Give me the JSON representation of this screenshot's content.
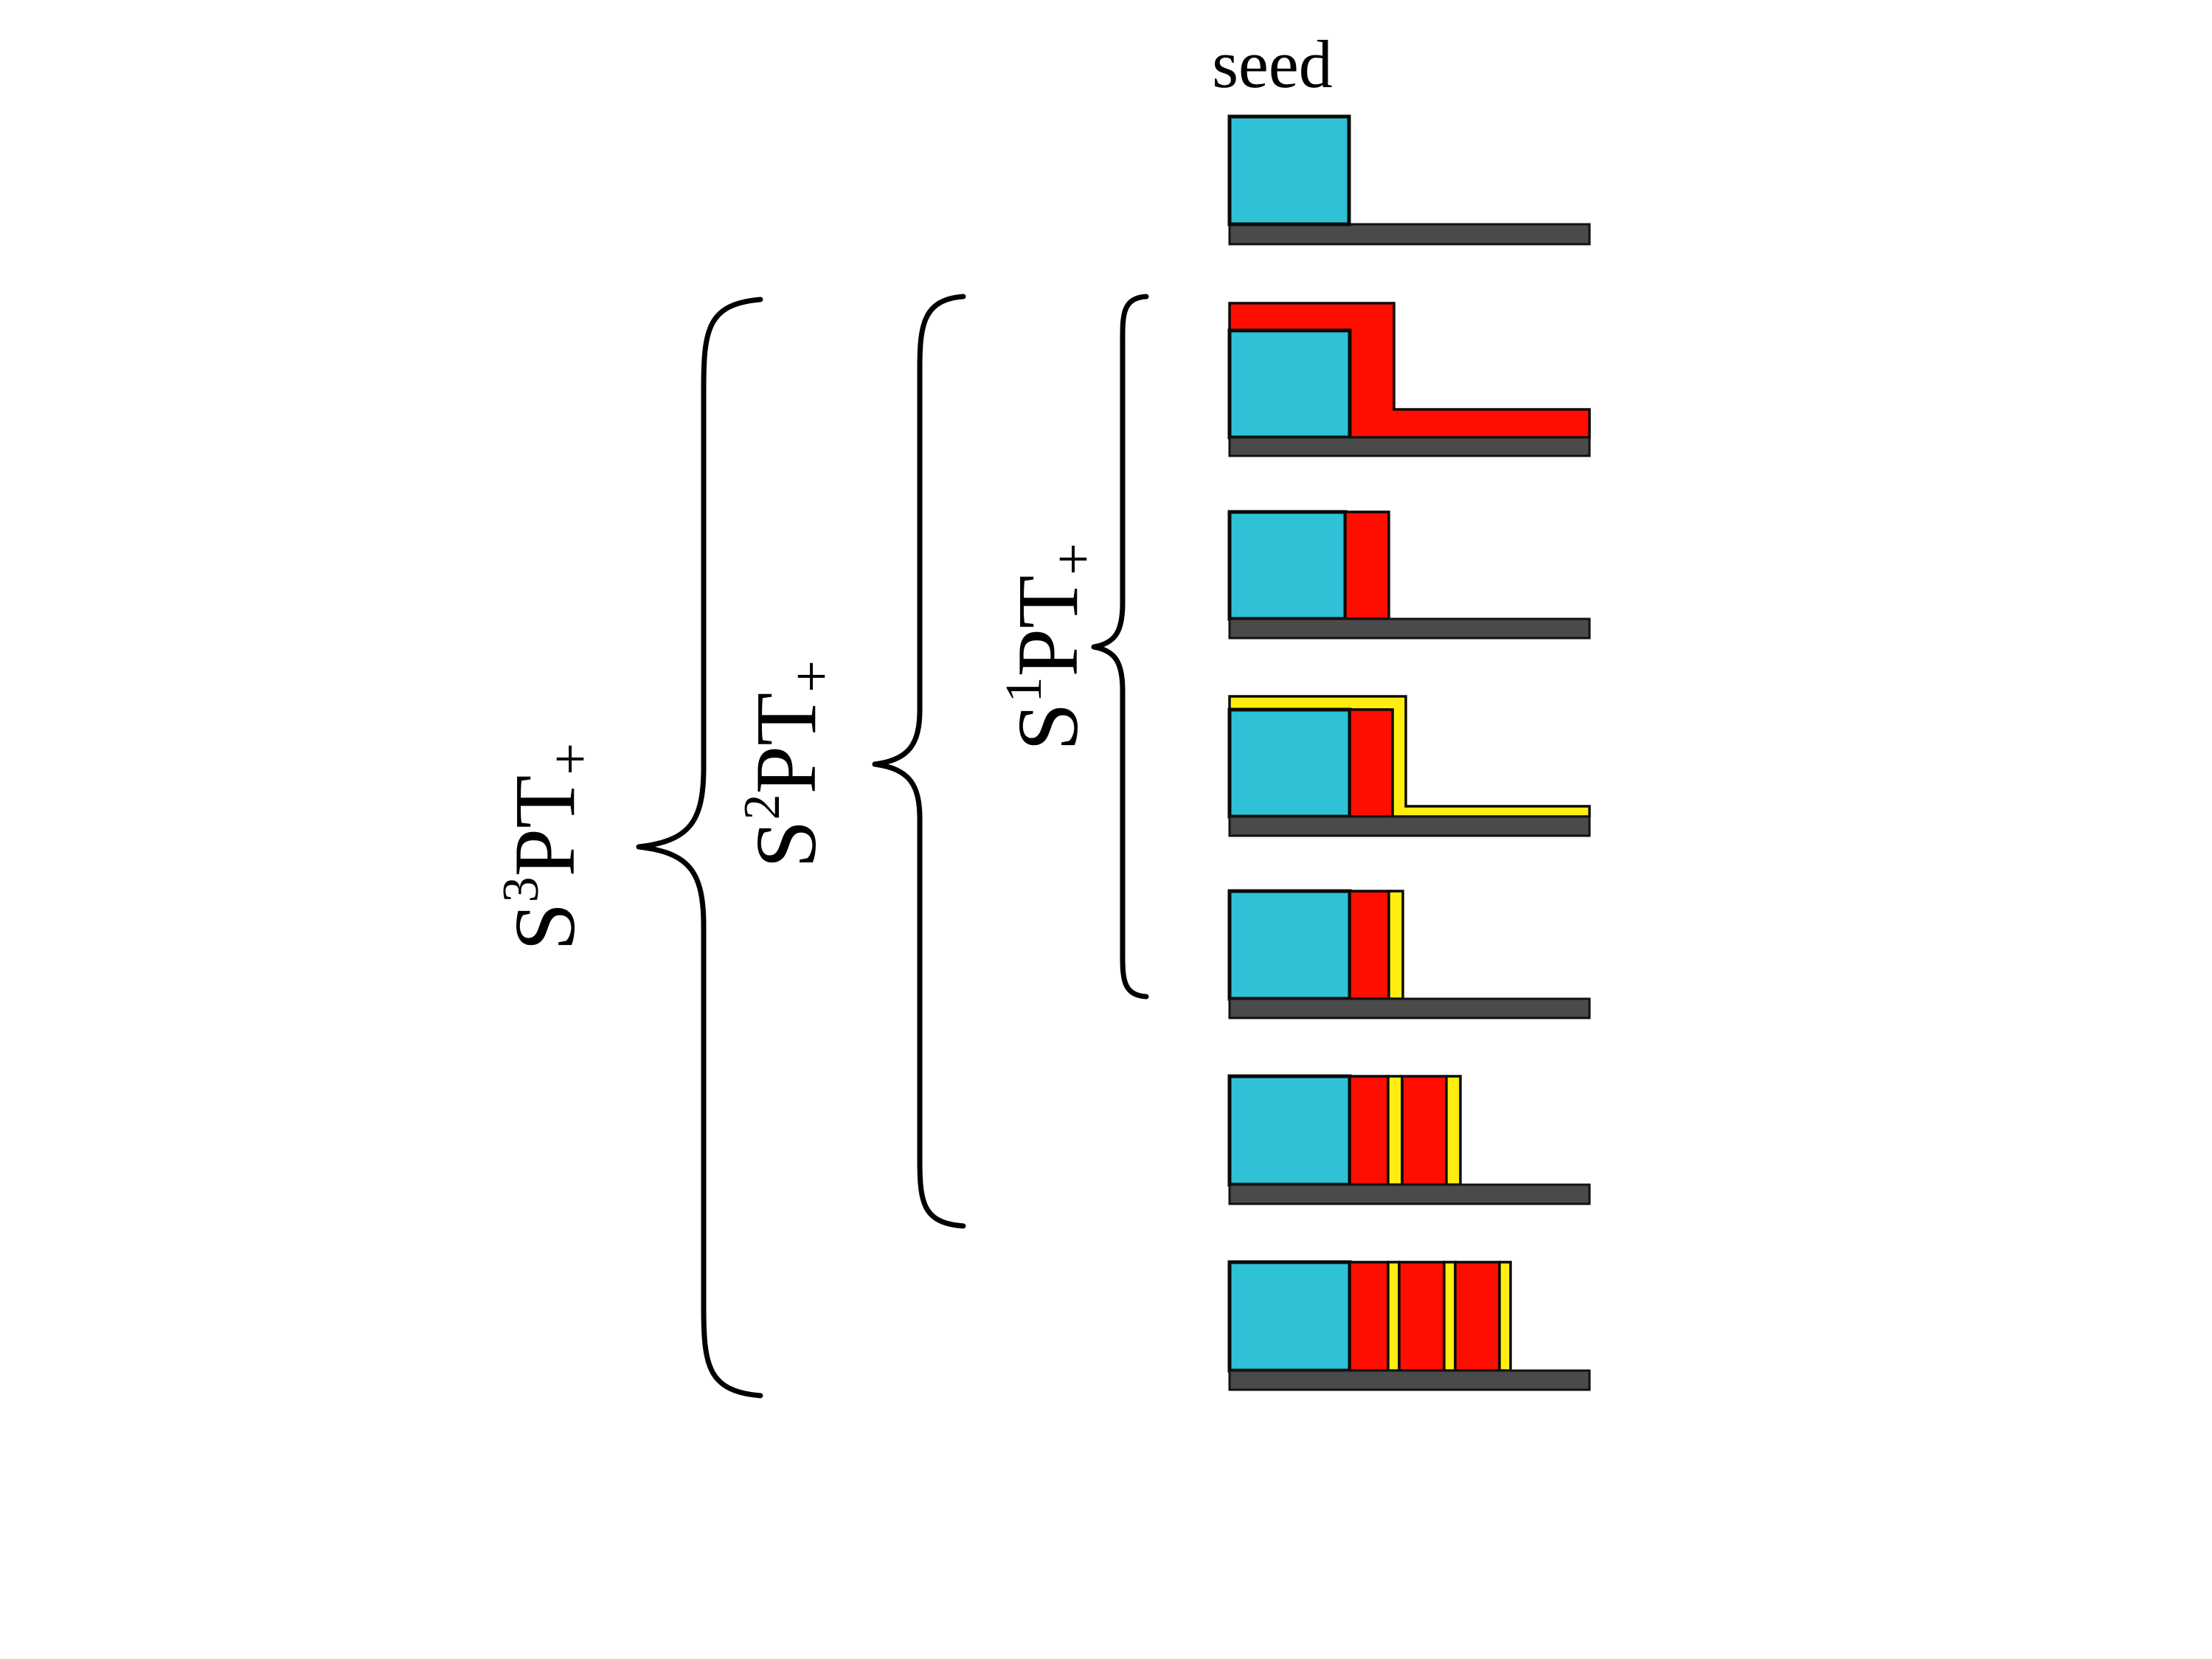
{
  "seed_label": "seed",
  "labels": {
    "s1": {
      "prefix": "S",
      "sup": "1",
      "main": "PT",
      "sub": "+"
    },
    "s2": {
      "prefix": "S",
      "sup": "2",
      "main": "PT",
      "sub": "+"
    },
    "s3": {
      "prefix": "S",
      "sup": "3",
      "main": "PT",
      "sub": "+"
    }
  },
  "colors": {
    "seed": "#2fc2d7",
    "layer_red": "#ff0d00",
    "layer_yellow": "#ffee10",
    "base": "#4a4a4a"
  },
  "panels": [
    {
      "id": "seed",
      "layers": [
        "seed"
      ]
    },
    {
      "id": "p1",
      "layers": [
        "seed",
        "red-coating"
      ]
    },
    {
      "id": "p2",
      "layers": [
        "seed",
        "red-bar"
      ]
    },
    {
      "id": "p3",
      "layers": [
        "seed",
        "red-bar",
        "yellow-coating"
      ]
    },
    {
      "id": "p4",
      "layers": [
        "seed",
        "red-bar",
        "yellow-bar"
      ]
    },
    {
      "id": "p5",
      "layers": [
        "seed",
        "red-bar",
        "yellow-bar",
        "red-bar",
        "yellow-bar"
      ]
    },
    {
      "id": "p6",
      "layers": [
        "seed",
        "red-bar",
        "yellow-bar",
        "red-bar",
        "yellow-bar",
        "red-bar",
        "yellow-bar"
      ]
    }
  ]
}
